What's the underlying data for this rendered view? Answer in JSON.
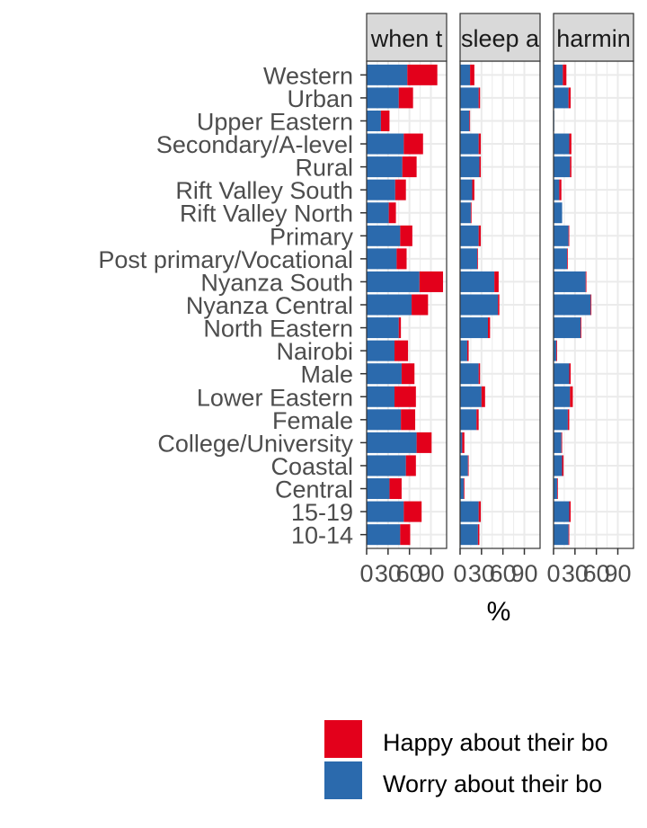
{
  "chart_data": {
    "type": "bar",
    "orientation": "horizontal",
    "stacked": true,
    "xlabel": "%",
    "xlim": [
      0,
      112
    ],
    "xticks": [
      0,
      30,
      60,
      90
    ],
    "xtick_labels": [
      "0",
      "30",
      "60",
      "90"
    ],
    "grid": true,
    "legend_position": "bottom",
    "colors": {
      "happy": "#e3001b",
      "worry": "#2b6aad"
    },
    "categories": [
      "Western",
      "Urban",
      "Upper Eastern",
      "Secondary/A-level",
      "Rural",
      "Rift Valley South",
      "Rift Valley North",
      "Primary",
      "Post primary/Vocational",
      "Nyanza South",
      "Nyanza Central",
      "North Eastern",
      "Nairobi",
      "Male",
      "Lower Eastern",
      "Female",
      "College/University",
      "Coastal",
      "Central",
      "15-19",
      "10-14"
    ],
    "series_names": [
      "Happy about their bo",
      "Worry about their bo"
    ],
    "panels": [
      {
        "strip": "when t",
        "worry": [
          57,
          45,
          20,
          52,
          50,
          40,
          31,
          47,
          42,
          74,
          63,
          45,
          39,
          49,
          39,
          48,
          70,
          55,
          32,
          52,
          47
        ],
        "happy": [
          42,
          20,
          12,
          27,
          20,
          15,
          10,
          17,
          14,
          33,
          23,
          3,
          19,
          18,
          30,
          20,
          21,
          14,
          17,
          25,
          14
        ]
      },
      {
        "strip": "sleep a",
        "worry": [
          14,
          26,
          13,
          26,
          27,
          17,
          15,
          26,
          24,
          48,
          53,
          39,
          10,
          26,
          30,
          23,
          3,
          11,
          5,
          26,
          25
        ],
        "happy": [
          6,
          2,
          1,
          3,
          2,
          3,
          1,
          3,
          1,
          6,
          2,
          3,
          2,
          2,
          5,
          3,
          3,
          1,
          1,
          3,
          2
        ]
      },
      {
        "strip": "harmin",
        "worry": [
          13,
          21,
          1,
          22,
          23,
          8,
          12,
          21,
          19,
          45,
          52,
          38,
          4,
          22,
          23,
          20,
          11,
          12,
          5,
          22,
          21
        ],
        "happy": [
          5,
          3,
          0,
          3,
          2,
          3,
          0,
          1,
          1,
          1,
          1,
          1,
          1,
          2,
          4,
          2,
          1,
          2,
          1,
          2,
          1
        ]
      }
    ]
  }
}
